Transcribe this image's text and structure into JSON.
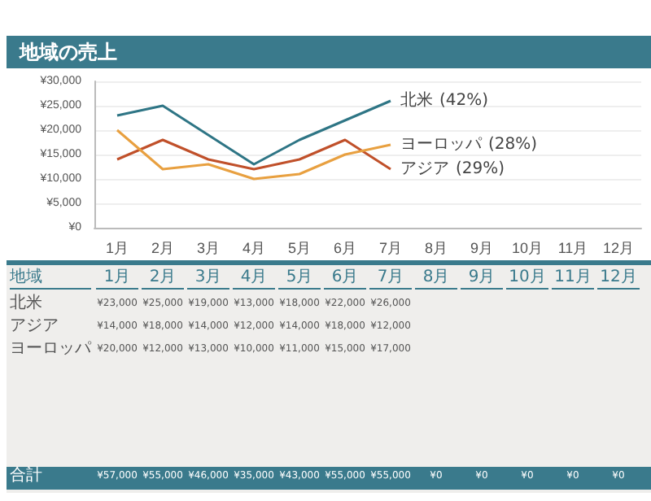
{
  "chart_data": {
    "type": "line",
    "title": "地域の売上",
    "categories": [
      "1月",
      "2月",
      "3月",
      "4月",
      "5月",
      "6月",
      "7月",
      "8月",
      "9月",
      "10月",
      "11月",
      "12月"
    ],
    "series": [
      {
        "name": "北米",
        "color": "#2e7585",
        "values": [
          23000,
          25000,
          19000,
          13000,
          18000,
          22000,
          26000,
          null,
          null,
          null,
          null,
          null
        ],
        "value_labels": [
          "¥23,000",
          "¥25,000",
          "¥19,000",
          "¥13,000",
          "¥18,000",
          "¥22,000",
          "¥26,000",
          null,
          null,
          null,
          null,
          null
        ]
      },
      {
        "name": "アジア",
        "color": "#c0502a",
        "values": [
          14000,
          18000,
          14000,
          12000,
          14000,
          18000,
          12000,
          null,
          null,
          null,
          null,
          null
        ],
        "value_labels": [
          "¥14,000",
          "¥18,000",
          "¥14,000",
          "¥12,000",
          "¥14,000",
          "¥18,000",
          "¥12,000",
          null,
          null,
          null,
          null,
          null
        ]
      },
      {
        "name": "ヨーロッパ",
        "color": "#e8a040",
        "values": [
          20000,
          12000,
          13000,
          10000,
          11000,
          15000,
          17000,
          null,
          null,
          null,
          null,
          null
        ],
        "value_labels": [
          "¥20,000",
          "¥12,000",
          "¥13,000",
          "¥10,000",
          "¥11,000",
          "¥15,000",
          "¥17,000",
          null,
          null,
          null,
          null,
          null
        ]
      }
    ],
    "annotations": [
      "(42%)",
      "(29%)",
      "(28%)",
      "地域",
      "合計"
    ],
    "totals": [
      "¥57,000",
      "¥55,000",
      "¥46,000",
      "¥35,000",
      "¥43,000",
      "¥55,000",
      "¥55,000",
      "¥0",
      "¥0",
      "¥0",
      "¥0",
      "¥0"
    ],
    "ylim": [
      0,
      30000
    ],
    "yticks": [
      {
        "value": 0,
        "label": "¥0"
      },
      {
        "value": 5000,
        "label": "¥5,000"
      },
      {
        "value": 10000,
        "label": "¥10,000"
      },
      {
        "value": 15000,
        "label": "¥15,000"
      },
      {
        "value": 20000,
        "label": "¥20,000"
      },
      {
        "value": 25000,
        "label": "¥25,000"
      },
      {
        "value": 30000,
        "label": "¥30,000"
      }
    ],
    "grid": "y",
    "legend": "bottom",
    "marker": "none",
    "line_style": "solid"
  }
}
